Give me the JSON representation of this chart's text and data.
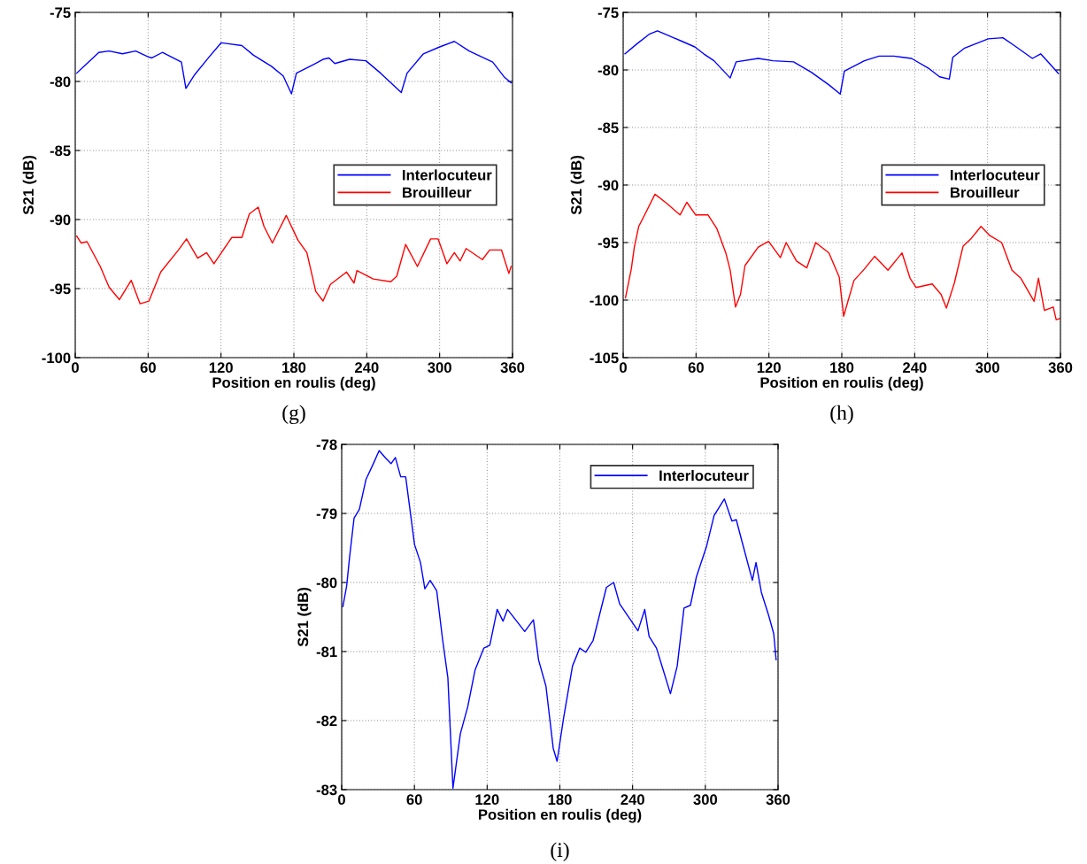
{
  "chart_data": [
    {
      "type": "line",
      "xlabel": "Position en roulis (deg)",
      "ylabel": "S21 (dB)",
      "xlim": [
        0,
        360
      ],
      "xticks": [
        0,
        60,
        120,
        180,
        240,
        300,
        360
      ],
      "ylim": [
        -100,
        -75
      ],
      "yticks": [
        -100,
        -95,
        -90,
        -85,
        -80,
        -75
      ],
      "grid": true,
      "legend": "right",
      "annotations": [
        "(g)"
      ],
      "series": [
        {
          "name": "Interlocuteur",
          "color": "#0000ff",
          "x": [
            1.2,
            8.5,
            19.4,
            27.9,
            38.9,
            49.8,
            59.5,
            63.1,
            71.7,
            87.4,
            91.1,
            98.4,
            110.5,
            120.2,
            137.2,
            146.8,
            161.5,
            171.2,
            178.0,
            182.1,
            195.5,
            204,
            208.9,
            213.7,
            225.9,
            239.3,
            251.4,
            268.4,
            273.2,
            286.6,
            300,
            312.1,
            324.3,
            343.7,
            353.4,
            358.8
          ],
          "values": [
            -79.4,
            -78.8,
            -77.9,
            -77.8,
            -78.0,
            -77.8,
            -78.2,
            -78.3,
            -77.9,
            -78.6,
            -80.5,
            -79.5,
            -78.2,
            -77.2,
            -77.4,
            -78.1,
            -78.9,
            -79.6,
            -80.9,
            -79.4,
            -78.8,
            -78.4,
            -78.3,
            -78.7,
            -78.4,
            -78.5,
            -79.4,
            -80.8,
            -79.4,
            -78.0,
            -77.5,
            -77.1,
            -77.8,
            -78.6,
            -79.7,
            -80.1
          ]
        },
        {
          "name": "Brouilleur",
          "color": "#ff0000",
          "x": [
            1.2,
            4.9,
            9.7,
            20.6,
            27.9,
            36.4,
            46.1,
            53.4,
            60.7,
            70.4,
            85,
            91.6,
            100.8,
            108.1,
            114.2,
            128.8,
            137.2,
            143.3,
            150.6,
            155.4,
            162.3,
            173.7,
            183.4,
            190.7,
            198,
            204,
            210.1,
            223.4,
            229.5,
            231.9,
            245.3,
            259.8,
            264.7,
            272,
            281.7,
            292.6,
            298.7,
            306,
            312.1,
            316.9,
            321.8,
            335.2,
            341.2,
            350.9,
            357,
            358.8
          ],
          "values": [
            -91.2,
            -91.7,
            -91.6,
            -93.4,
            -94.9,
            -95.8,
            -94.4,
            -96.1,
            -95.9,
            -93.8,
            -92.2,
            -91.4,
            -92.8,
            -92.4,
            -93.2,
            -91.3,
            -91.3,
            -89.6,
            -89.1,
            -90.5,
            -91.7,
            -89.7,
            -91.5,
            -92.4,
            -95.2,
            -95.9,
            -94.7,
            -93.8,
            -94.6,
            -93.7,
            -94.3,
            -94.5,
            -94.1,
            -91.8,
            -93.4,
            -91.4,
            -91.4,
            -93.2,
            -92.4,
            -93.0,
            -92.1,
            -92.9,
            -92.2,
            -92.2,
            -93.9,
            -93.4
          ]
        }
      ]
    },
    {
      "type": "line",
      "xlabel": "Position en roulis (deg)",
      "ylabel": "S21 (dB)",
      "xlim": [
        0,
        360
      ],
      "xticks": [
        0,
        60,
        120,
        180,
        240,
        300,
        360
      ],
      "ylim": [
        -105,
        -75
      ],
      "yticks": [
        -105,
        -100,
        -95,
        -90,
        -85,
        -80,
        -75
      ],
      "grid": true,
      "legend": "right",
      "annotations": [
        "(h)"
      ],
      "series": [
        {
          "name": "Interlocuteur",
          "color": "#0000ff",
          "x": [
            1.5,
            11.7,
            21.4,
            28.2,
            34.7,
            48.1,
            59,
            66.3,
            74.8,
            88.1,
            93,
            111.2,
            123.3,
            140.3,
            154.9,
            169.4,
            178.7,
            182.1,
            198.6,
            210.7,
            222.9,
            237.4,
            252,
            260.5,
            268.5,
            271.4,
            281.1,
            300.5,
            312.6,
            322.3,
            336.9,
            343.7,
            351.5,
            358.3
          ],
          "values": [
            -78.6,
            -77.7,
            -76.9,
            -76.6,
            -76.9,
            -77.5,
            -78.0,
            -78.6,
            -79.2,
            -80.7,
            -79.3,
            -79.0,
            -79.2,
            -79.3,
            -80.2,
            -81.3,
            -82.1,
            -80.1,
            -79.2,
            -78.8,
            -78.8,
            -79.0,
            -79.9,
            -80.6,
            -80.8,
            -78.9,
            -78.1,
            -77.3,
            -77.2,
            -77.9,
            -79.0,
            -78.6,
            -79.5,
            -80.3
          ]
        },
        {
          "name": "Brouilleur",
          "color": "#ff0000",
          "x": [
            1.9,
            6.7,
            9.2,
            12.8,
            17.7,
            26.2,
            35.9,
            46.8,
            52.4,
            59.7,
            69.9,
            77.2,
            84.5,
            88.1,
            92.5,
            96.6,
            100.3,
            111.2,
            119.7,
            129.4,
            134.2,
            142.7,
            151.2,
            158.5,
            169.4,
            177.9,
            181.5,
            190,
            198.6,
            207,
            218,
            229.6,
            236.2,
            241.1,
            254.4,
            261.7,
            266.1,
            272.7,
            279.9,
            286.1,
            294.6,
            301.9,
            311.6,
            320.1,
            327.4,
            338.3,
            341.9,
            346.8,
            354.1,
            356.5,
            359.5
          ],
          "values": [
            -99.8,
            -97.3,
            -95.4,
            -93.6,
            -92.6,
            -90.8,
            -91.6,
            -92.6,
            -91.5,
            -92.6,
            -92.6,
            -93.8,
            -95.9,
            -97.4,
            -100.6,
            -99.5,
            -97.0,
            -95.4,
            -94.9,
            -96.3,
            -95.0,
            -96.6,
            -97.2,
            -95.0,
            -95.9,
            -98.0,
            -101.4,
            -98.3,
            -97.3,
            -96.2,
            -97.4,
            -95.9,
            -98.1,
            -98.9,
            -98.6,
            -99.5,
            -100.7,
            -98.5,
            -95.3,
            -94.7,
            -93.6,
            -94.4,
            -95.0,
            -97.4,
            -98.1,
            -100.1,
            -98.1,
            -100.9,
            -100.6,
            -101.7,
            -101.6
          ]
        }
      ]
    },
    {
      "type": "line",
      "xlabel": "Position en roulis (deg)",
      "ylabel": "S21 (dB)",
      "xlim": [
        0,
        360
      ],
      "xticks": [
        0,
        60,
        120,
        180,
        240,
        300,
        360
      ],
      "ylim": [
        -83,
        -78
      ],
      "yticks": [
        -83,
        -82,
        -81,
        -80,
        -79,
        -78
      ],
      "grid": true,
      "legend": "top right",
      "annotations": [
        "(i)"
      ],
      "series": [
        {
          "name": "Interlocuteur",
          "color": "#0000ff",
          "x": [
            1,
            4.1,
            6.6,
            10.2,
            14.6,
            20,
            26.1,
            30.9,
            35.8,
            40.7,
            44.3,
            48.7,
            52.8,
            60.1,
            65,
            68.6,
            73,
            78.4,
            83.2,
            87.6,
            91.8,
            97.9,
            104,
            110,
            117.3,
            122.2,
            128.3,
            133.1,
            136.8,
            151,
            158.2,
            162.4,
            168.5,
            174.5,
            177.7,
            183,
            190.4,
            196.4,
            201.3,
            207.4,
            211,
            218.4,
            224.4,
            229.3,
            239,
            244.4,
            250,
            253.6,
            259.7,
            264.6,
            271.2,
            276.8,
            282.4,
            287.7,
            292.6,
            301.1,
            307.2,
            315.7,
            321.9,
            325.5,
            330.3,
            338.8,
            341.8,
            346.2,
            352.3,
            356.4,
            358.4
          ],
          "values": [
            -80.35,
            -80.05,
            -79.62,
            -79.07,
            -78.94,
            -78.51,
            -78.28,
            -78.09,
            -78.19,
            -78.28,
            -78.19,
            -78.47,
            -78.47,
            -79.45,
            -79.71,
            -80.09,
            -79.97,
            -80.12,
            -80.82,
            -81.38,
            -82.98,
            -82.19,
            -81.8,
            -81.27,
            -80.95,
            -80.91,
            -80.39,
            -80.56,
            -80.39,
            -80.71,
            -80.54,
            -81.12,
            -81.5,
            -82.4,
            -82.59,
            -81.97,
            -81.21,
            -80.95,
            -81.01,
            -80.84,
            -80.59,
            -80.07,
            -80.0,
            -80.31,
            -80.56,
            -80.7,
            -80.39,
            -80.78,
            -80.95,
            -81.23,
            -81.61,
            -81.21,
            -80.37,
            -80.33,
            -79.92,
            -79.47,
            -79.03,
            -78.79,
            -79.11,
            -79.09,
            -79.41,
            -79.97,
            -79.71,
            -80.14,
            -80.48,
            -80.74,
            -81.12
          ]
        }
      ]
    }
  ]
}
